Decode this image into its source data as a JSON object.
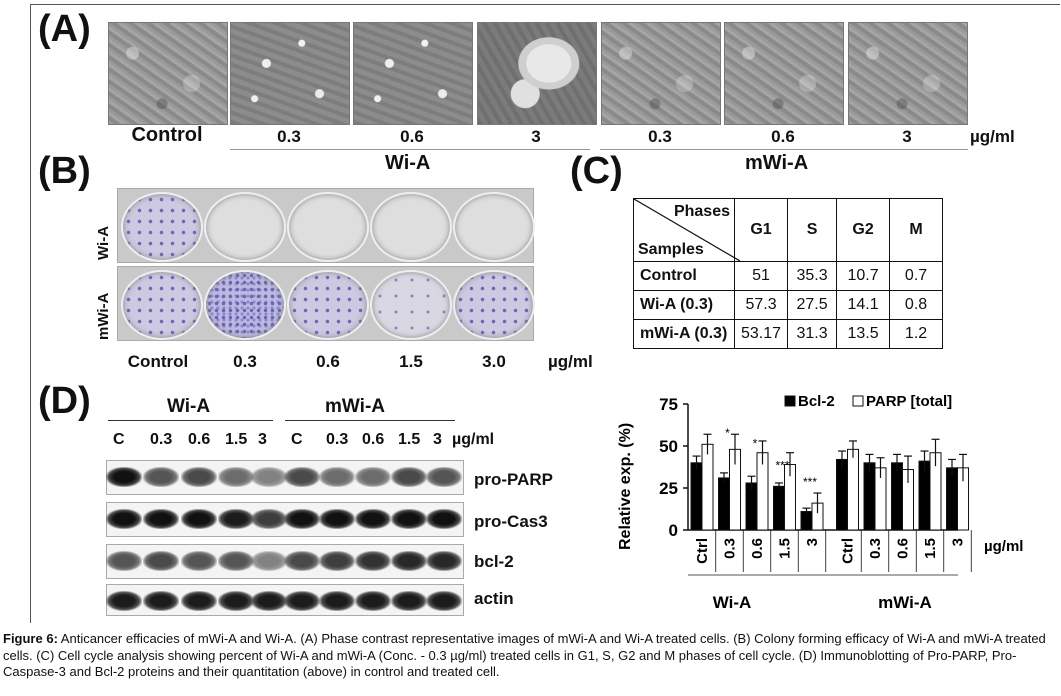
{
  "panel_labels": {
    "a": "(A)",
    "b": "(B)",
    "c": "(C)",
    "d": "(D)"
  },
  "panel_a": {
    "conc_labels": [
      "Control",
      "0.3",
      "0.6",
      "3",
      "0.3",
      "0.6",
      "3"
    ],
    "unit": "µg/ml",
    "group_wi": "Wi-A",
    "group_mwi": "mWi-A"
  },
  "panel_b": {
    "row_labels": [
      "Wi-A",
      "mWi-A"
    ],
    "conc_labels": [
      "Control",
      "0.3",
      "0.6",
      "1.5",
      "3.0"
    ],
    "unit": "µg/ml"
  },
  "panel_c": {
    "header_phases": "Phases",
    "header_samples": "Samples",
    "columns": [
      "G1",
      "S",
      "G2",
      "M"
    ],
    "rows": [
      {
        "name": "Control",
        "values": [
          "51",
          "35.3",
          "10.7",
          "0.7"
        ]
      },
      {
        "name": "Wi-A (0.3)",
        "values": [
          "57.3",
          "27.5",
          "14.1",
          "0.8"
        ]
      },
      {
        "name": "mWi-A (0.3)",
        "values": [
          "53.17",
          "31.3",
          "13.5",
          "1.2"
        ]
      }
    ]
  },
  "panel_d": {
    "group_wi": "Wi-A",
    "group_mwi": "mWi-A",
    "lanes": [
      "C",
      "0.3",
      "0.6",
      "1.5",
      "3",
      "C",
      "0.3",
      "0.6",
      "1.5",
      "3"
    ],
    "unit": "µg/ml",
    "blots": [
      "pro-PARP",
      "pro-Cas3",
      "bcl-2",
      "actin"
    ]
  },
  "chart_data": {
    "type": "bar",
    "ylabel": "Relative exp. (%)",
    "ylim": [
      0,
      75
    ],
    "yticks": [
      "0",
      "25",
      "50",
      "75"
    ],
    "categories": [
      "Ctrl",
      "0.3",
      "0.6",
      "1.5",
      "3",
      "Ctrl",
      "0.3",
      "0.6",
      "1.5",
      "3"
    ],
    "groups": [
      "Wi-A",
      "mWi-A"
    ],
    "unit": "µg/ml",
    "legend_position": "top-right",
    "series": [
      {
        "name": "Bcl-2",
        "color": "#000000",
        "values": [
          40,
          31,
          28,
          26,
          11,
          42,
          40,
          40,
          41,
          37
        ],
        "errors": [
          4,
          3,
          4,
          2,
          2,
          5,
          5,
          5,
          6,
          5
        ]
      },
      {
        "name": "PARP [total]",
        "color": "#ffffff",
        "values": [
          51,
          48,
          46,
          39,
          16,
          48,
          37,
          36,
          46,
          37
        ],
        "errors": [
          6,
          9,
          7,
          7,
          6,
          5,
          6,
          8,
          8,
          8
        ]
      }
    ],
    "significance": [
      "*",
      "*",
      "***",
      "***"
    ]
  },
  "caption": {
    "label": "Figure 6:",
    "text": " Anticancer efficacies of mWi-A and Wi-A. (A) Phase contrast representative images of mWi-A and Wi-A treated cells. (B) Colony forming efficacy of Wi-A and mWi-A treated cells. (C) Cell cycle analysis showing percent of Wi-A and mWi-A (Conc. - 0.3 µg/ml) treated cells in G1, S, G2 and M phases of cell cycle. (D) Immunoblotting of Pro-PARP, Pro-Caspase-3 and Bcl-2 proteins and their quantitation (above) in control and treated cell."
  }
}
